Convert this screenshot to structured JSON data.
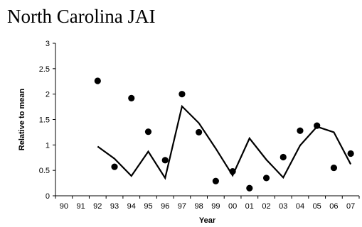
{
  "chart_data": {
    "type": "line",
    "title": "North Carolina JAI",
    "xlabel": "Year",
    "ylabel": "Relative to mean",
    "ylim": [
      0,
      3
    ],
    "yticks": [
      "0",
      "0.5",
      "1",
      "1.5",
      "2",
      "2.5",
      "3"
    ],
    "categories": [
      "90",
      "91",
      "92",
      "93",
      "94",
      "95",
      "96",
      "97",
      "98",
      "99",
      "00",
      "01",
      "02",
      "03",
      "04",
      "05",
      "06",
      "07"
    ],
    "grid": false,
    "legend": "none",
    "series": [
      {
        "kind": "scatter",
        "marker": "filled-circle",
        "color": "#000000",
        "values": [
          null,
          null,
          2.26,
          0.57,
          1.92,
          1.26,
          0.7,
          2.0,
          1.25,
          0.29,
          0.48,
          0.15,
          0.35,
          0.76,
          1.28,
          1.38,
          0.55,
          0.83
        ]
      },
      {
        "kind": "line",
        "color": "#000000",
        "values": [
          null,
          null,
          0.97,
          0.73,
          0.39,
          0.87,
          0.35,
          1.76,
          1.43,
          0.93,
          0.4,
          1.13,
          0.71,
          0.36,
          0.99,
          1.36,
          1.25,
          0.62
        ]
      }
    ]
  }
}
